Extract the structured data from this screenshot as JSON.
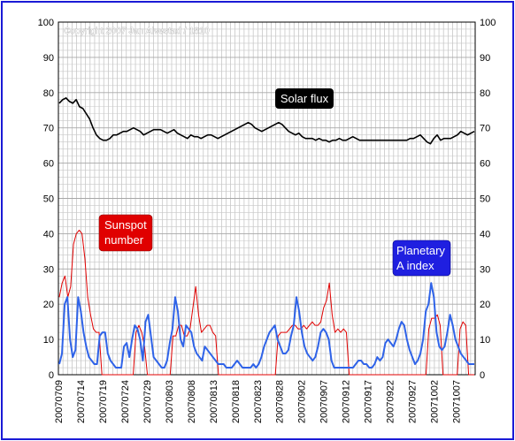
{
  "chart_data": {
    "type": "line",
    "title": "",
    "xlabel": "",
    "ylabel": "",
    "ylim": [
      0,
      100
    ],
    "yticks": [
      0,
      10,
      20,
      30,
      40,
      50,
      60,
      70,
      80,
      90,
      100
    ],
    "grid": true,
    "copyright": "Copyright 2007 Jan Alvestad / 1810",
    "x_tick_labels": [
      "20070709",
      "20070714",
      "20070719",
      "20070724",
      "20070729",
      "20070803",
      "20070808",
      "20070813",
      "20070818",
      "20070823",
      "20070828",
      "20070902",
      "20070907",
      "20070912",
      "20070917",
      "20070922",
      "20070927",
      "20071002",
      "20071007"
    ],
    "annotations": {
      "solar_flux": {
        "text": "Solar flux",
        "bg": "#000000",
        "fg": "#ffffff"
      },
      "sunspot": {
        "text_line1": "Sunspot",
        "text_line2": "number",
        "bg": "#e00000",
        "fg": "#ffffff"
      },
      "planetary": {
        "text_line1": "Planetary",
        "text_line2": "A index",
        "bg": "#1f1fe0",
        "fg": "#ffffff"
      }
    },
    "series": [
      {
        "name": "Solar flux",
        "color": "#000000",
        "values": [
          77,
          78,
          78.5,
          77.5,
          77,
          78,
          76,
          75.5,
          74,
          72.5,
          70,
          68,
          67,
          66.5,
          66.5,
          67,
          68,
          68,
          68.5,
          69,
          69,
          69.5,
          70,
          69.5,
          69,
          68,
          68.5,
          69,
          69.5,
          69.5,
          69.5,
          69,
          68.5,
          69,
          69.5,
          68.5,
          68,
          67.5,
          67,
          68,
          67.5,
          67.5,
          67,
          67.5,
          68,
          68,
          67.5,
          67,
          67.5,
          68,
          68.5,
          69,
          69.5,
          70,
          70.5,
          71,
          71.5,
          71,
          70,
          69.5,
          69,
          69.5,
          70,
          70.5,
          71,
          71.5,
          71,
          70,
          69,
          68.5,
          68,
          68.5,
          67.5,
          67,
          67,
          67,
          66.5,
          67,
          66.5,
          66.5,
          66,
          66.5,
          66.5,
          67,
          66.5,
          66.5,
          67,
          67.5,
          67,
          66.5,
          66.5,
          66.5,
          66.5,
          66.5,
          66.5,
          66.5,
          66.5,
          66.5,
          66.5,
          66.5,
          66.5,
          66.5,
          66.5,
          66.5,
          67,
          67,
          67.5,
          68,
          67,
          66,
          65.5,
          67,
          68,
          66.5,
          67,
          67,
          67,
          67.5,
          68,
          69,
          68.5,
          68,
          68.5,
          69
        ]
      },
      {
        "name": "Sunspot number",
        "color": "#e00000",
        "values": [
          22,
          26,
          28,
          22,
          25,
          37,
          40,
          41,
          40,
          33,
          22,
          17,
          13,
          12,
          12,
          0,
          0,
          0,
          0,
          0,
          0,
          0,
          0,
          0,
          0,
          0,
          0,
          12,
          14,
          12,
          8,
          0,
          0,
          0,
          0,
          0,
          0,
          0,
          0,
          0,
          11,
          11,
          14,
          14,
          11,
          11,
          13,
          19,
          25,
          17,
          12,
          13,
          14,
          14,
          12,
          11,
          0,
          0,
          0,
          0,
          0,
          0,
          0,
          0,
          0,
          0,
          0,
          0,
          0,
          0,
          0,
          0,
          0,
          0,
          0,
          0,
          0,
          11,
          12,
          12,
          12,
          13,
          14,
          14,
          13,
          13,
          14,
          13,
          14,
          15,
          14,
          14,
          15,
          19,
          21,
          26,
          17,
          12,
          13,
          12,
          13,
          12,
          0,
          0,
          0,
          0,
          0,
          0,
          0,
          0,
          0,
          0,
          0,
          0,
          0,
          0,
          0,
          0,
          0,
          0,
          0,
          0,
          0,
          0,
          0,
          0,
          0,
          0,
          0,
          0,
          13,
          16,
          16,
          17,
          14,
          0,
          0,
          0,
          0,
          0,
          0,
          13,
          15,
          14,
          0,
          0,
          0
        ]
      },
      {
        "name": "Planetary A index",
        "color": "#2f63e8",
        "values": [
          3,
          6,
          20,
          22,
          10,
          5,
          7,
          22,
          18,
          12,
          8,
          5,
          4,
          3,
          3,
          11,
          12,
          12,
          6,
          4,
          3,
          2,
          2,
          2,
          8,
          9,
          5,
          10,
          14,
          13,
          10,
          4,
          15,
          17,
          11,
          5,
          4,
          3,
          2,
          2,
          4,
          9,
          13,
          22,
          18,
          10,
          8,
          14,
          13,
          12,
          8,
          6,
          5,
          4,
          8,
          7,
          6,
          5,
          4,
          3,
          3,
          3,
          2,
          2,
          2,
          3,
          4,
          3,
          2,
          2,
          2,
          2,
          3,
          2,
          3,
          5,
          8,
          10,
          12,
          13,
          14,
          10,
          8,
          6,
          6,
          7,
          11,
          14,
          22,
          18,
          12,
          8,
          6,
          5,
          4,
          5,
          8,
          12,
          13,
          12,
          10,
          4,
          2,
          2,
          2,
          2,
          2,
          2,
          2,
          2,
          3,
          4,
          4,
          3,
          3,
          2,
          2,
          3,
          5,
          4,
          5,
          9,
          10,
          9,
          8,
          10,
          13,
          15,
          14,
          10,
          7,
          5,
          3,
          4,
          6,
          10,
          18,
          20,
          26,
          22,
          12,
          8,
          7,
          8,
          12,
          17,
          14,
          10,
          8,
          6,
          5,
          4,
          3,
          3,
          3
        ]
      }
    ]
  }
}
